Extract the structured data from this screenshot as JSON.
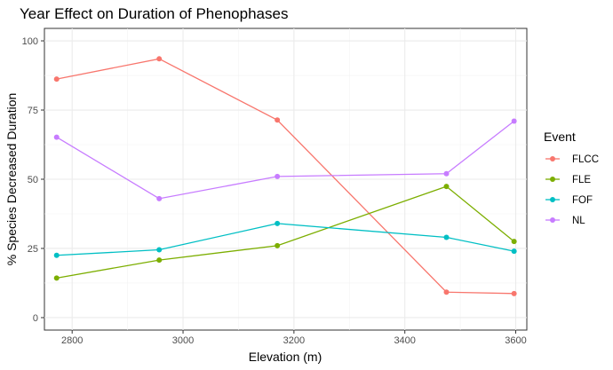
{
  "chart_data": {
    "type": "line",
    "title": "Year Effect on Duration of Phenophases",
    "xlabel": "Elevation (m)",
    "ylabel": "% Species Decreased Duration",
    "xlim": [
      2750,
      3620
    ],
    "ylim": [
      -4.5,
      104.5
    ],
    "x_ticks": [
      2800,
      3000,
      3200,
      3400,
      3600
    ],
    "y_ticks": [
      0,
      25,
      50,
      75,
      100
    ],
    "grid": true,
    "legend": {
      "title": "Event",
      "position": "right"
    },
    "x": [
      2772,
      2957,
      3170,
      3475,
      3597
    ],
    "series": [
      {
        "name": "FLCC",
        "color": "#F8766D",
        "values": [
          86.2,
          93.5,
          71.4,
          9.2,
          8.7
        ]
      },
      {
        "name": "FLE",
        "color": "#7CAE00",
        "values": [
          14.3,
          20.8,
          26.0,
          47.4,
          27.5
        ]
      },
      {
        "name": "FOF",
        "color": "#00BFC4",
        "values": [
          22.5,
          24.5,
          34.0,
          29.0,
          24.0
        ]
      },
      {
        "name": "NL",
        "color": "#C77CFF",
        "values": [
          65.2,
          43.0,
          51.0,
          52.0,
          71.0
        ]
      }
    ]
  }
}
